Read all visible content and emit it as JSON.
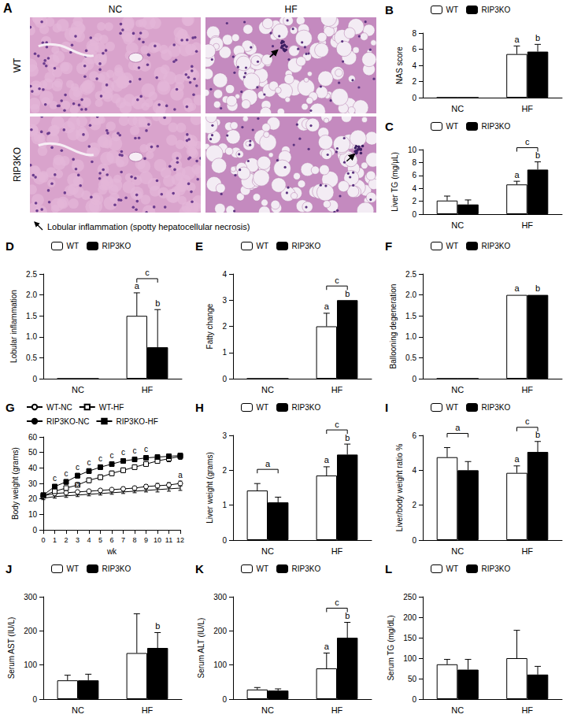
{
  "panel_a": {
    "panel": "A",
    "columns": [
      "NC",
      "HF"
    ],
    "rows": [
      "WT",
      "RIP3KO"
    ],
    "caption": "Lobular inflammation (spotty hepatocellular necrosis)"
  },
  "chart_data": [
    {
      "panel": "B",
      "type": "bar",
      "ylabel": "NAS score",
      "categories": [
        "NC",
        "HF"
      ],
      "ylim": [
        0,
        8
      ],
      "yticks": [
        0,
        2,
        4,
        6,
        8
      ],
      "legend": "upper left",
      "series": [
        {
          "name": "WT",
          "color": "#ffffff",
          "values": [
            0,
            5.4
          ],
          "errors": [
            null,
            1.0
          ],
          "letters": [
            null,
            "a"
          ]
        },
        {
          "name": "RIP3KO",
          "color": "#000000",
          "values": [
            0,
            5.7
          ],
          "errors": [
            null,
            0.9
          ],
          "letters": [
            null,
            "b"
          ]
        }
      ],
      "brackets": []
    },
    {
      "panel": "C",
      "type": "bar",
      "ylabel": "Liver TG (mg/μL)",
      "categories": [
        "NC",
        "HF"
      ],
      "ylim": [
        0,
        10
      ],
      "yticks": [
        0,
        2,
        4,
        6,
        8,
        10
      ],
      "legend": "upper left",
      "series": [
        {
          "name": "WT",
          "color": "#ffffff",
          "values": [
            2.1,
            4.6
          ],
          "errors": [
            0.7,
            0.5
          ],
          "letters": [
            null,
            "a"
          ]
        },
        {
          "name": "RIP3KO",
          "color": "#000000",
          "values": [
            1.5,
            6.9
          ],
          "errors": [
            0.7,
            1.2
          ],
          "letters": [
            null,
            "b"
          ]
        }
      ],
      "brackets": [
        {
          "category": "HF",
          "label": "c"
        }
      ]
    },
    {
      "panel": "D",
      "type": "bar",
      "ylabel": "Lobular inflammation",
      "categories": [
        "NC",
        "HF"
      ],
      "ylim": [
        0,
        2.5
      ],
      "yticks": [
        0,
        0.5,
        {
          "value": 1,
          "label": "1.0"
        },
        1.5,
        {
          "value": 2,
          "label": "2.0"
        },
        2.5
      ],
      "legend": "upper left",
      "series": [
        {
          "name": "WT",
          "color": "#ffffff",
          "values": [
            0,
            1.5
          ],
          "errors": [
            null,
            0.55
          ],
          "letters": [
            null,
            "a"
          ]
        },
        {
          "name": "RIP3KO",
          "color": "#000000",
          "values": [
            0,
            0.75
          ],
          "errors": [
            null,
            0.9
          ],
          "letters": [
            null,
            "b"
          ]
        }
      ],
      "brackets": [
        {
          "category": "HF",
          "label": "c"
        }
      ]
    },
    {
      "panel": "E",
      "type": "bar",
      "ylabel": "Fatty change",
      "categories": [
        "NC",
        "HF"
      ],
      "ylim": [
        0,
        4
      ],
      "yticks": [
        0,
        1,
        2,
        3,
        4
      ],
      "legend": "upper left",
      "series": [
        {
          "name": "WT",
          "color": "#ffffff",
          "values": [
            0,
            2
          ],
          "errors": [
            null,
            0.5
          ],
          "letters": [
            null,
            "a"
          ]
        },
        {
          "name": "RIP3KO",
          "color": "#000000",
          "values": [
            0,
            3
          ],
          "errors": [
            null,
            0
          ],
          "letters": [
            null,
            "b"
          ]
        }
      ],
      "brackets": [
        {
          "category": "HF",
          "label": "c"
        }
      ]
    },
    {
      "panel": "F",
      "type": "bar",
      "ylabel": "Ballooning degeneration",
      "categories": [
        "NC",
        "HF"
      ],
      "ylim": [
        0,
        2.5
      ],
      "yticks": [
        0,
        0.5,
        {
          "value": 1,
          "label": "1.0"
        },
        1.5,
        {
          "value": 2,
          "label": "2.0"
        },
        2.5
      ],
      "legend": "upper left",
      "series": [
        {
          "name": "WT",
          "color": "#ffffff",
          "values": [
            0,
            2
          ],
          "errors": [
            null,
            0
          ],
          "letters": [
            null,
            "a"
          ]
        },
        {
          "name": "RIP3KO",
          "color": "#000000",
          "values": [
            0,
            2
          ],
          "errors": [
            null,
            0
          ],
          "letters": [
            null,
            "b"
          ]
        }
      ],
      "brackets": []
    },
    {
      "panel": "G",
      "type": "line",
      "xlabel": "wk",
      "ylabel": "Body weight (grams)",
      "x": [
        0,
        1,
        2,
        3,
        4,
        5,
        6,
        7,
        8,
        9,
        10,
        11,
        12
      ],
      "xlim": [
        0,
        12
      ],
      "xticks": [
        0,
        1,
        2,
        3,
        4,
        5,
        6,
        7,
        8,
        9,
        10,
        11,
        12
      ],
      "ylim": [
        0,
        60
      ],
      "yticks": [
        0,
        10,
        20,
        30,
        40,
        50,
        60
      ],
      "legend": "upper left",
      "series": [
        {
          "name": "WT-NC",
          "color": "#000000",
          "marker": "open_circle",
          "values": [
            22,
            23.5,
            24,
            24.5,
            25,
            25.5,
            26,
            26.5,
            27,
            28,
            28.5,
            29,
            30
          ],
          "errors": [
            1,
            1,
            1,
            1,
            1,
            1,
            1,
            1.2,
            1.2,
            1.2,
            1.5,
            1.5,
            1.5
          ]
        },
        {
          "name": "WT-HF",
          "color": "#000000",
          "marker": "open_square",
          "values": [
            22,
            25,
            27,
            29,
            32,
            34,
            36.5,
            38.5,
            40.5,
            42.5,
            44.5,
            46,
            47.5
          ],
          "errors": [
            1,
            1,
            1.2,
            1.2,
            1.5,
            1.5,
            1.5,
            1.5,
            1.5,
            1.5,
            1.5,
            2,
            2
          ]
        },
        {
          "name": "RIP3KO-NC",
          "color": "#000000",
          "marker": "none",
          "values": [
            20.5,
            21.5,
            22,
            22.5,
            23,
            23.5,
            24,
            24.5,
            25,
            25.5,
            26,
            26.5,
            27
          ],
          "errors": [
            1,
            1,
            1,
            1,
            1,
            1,
            1,
            1,
            1,
            1,
            1.5,
            1.5,
            1.5
          ]
        },
        {
          "name": "RIP3KO-HF",
          "color": "#000000",
          "marker": "filled_square",
          "values": [
            22.5,
            28,
            31,
            35,
            38,
            40.5,
            42.5,
            44.5,
            45.5,
            46.5,
            47,
            47.5,
            48
          ],
          "errors": [
            1,
            1.2,
            1.5,
            1.5,
            1.5,
            1.5,
            1.5,
            1.5,
            1.5,
            1.5,
            1.5,
            1.5,
            1.5
          ]
        }
      ],
      "annotations": [
        {
          "x": 1,
          "label": "c",
          "group": "HF"
        },
        {
          "x": 2,
          "label": "c",
          "group": "HF"
        },
        {
          "x": 3,
          "label": "c",
          "group": "HF"
        },
        {
          "x": 4,
          "label": "c",
          "group": "HF"
        },
        {
          "x": 5,
          "label": "c",
          "group": "HF"
        },
        {
          "x": 6,
          "label": "c",
          "group": "HF"
        },
        {
          "x": 7,
          "label": "c",
          "group": "HF"
        },
        {
          "x": 8,
          "label": "c",
          "group": "HF"
        },
        {
          "x": 9,
          "label": "c",
          "group": "HF"
        },
        {
          "x": 3,
          "label": "a",
          "group": "NC"
        },
        {
          "x": 12,
          "label": "a",
          "group": "NC"
        }
      ]
    },
    {
      "panel": "H",
      "type": "bar",
      "ylabel": "Liver weight (grams)",
      "categories": [
        "NC",
        "HF"
      ],
      "ylim": [
        0,
        3
      ],
      "yticks": [
        0,
        1,
        2,
        3
      ],
      "legend": "upper left",
      "series": [
        {
          "name": "WT",
          "color": "#ffffff",
          "values": [
            1.42,
            1.85
          ],
          "errors": [
            0.2,
            0.25
          ],
          "letters": [
            null,
            "a"
          ]
        },
        {
          "name": "RIP3KO",
          "color": "#000000",
          "values": [
            1.08,
            2.45
          ],
          "errors": [
            0.15,
            0.3
          ],
          "letters": [
            null,
            "b"
          ]
        }
      ],
      "brackets": [
        {
          "category": "NC",
          "label": "a"
        },
        {
          "category": "HF",
          "label": "c"
        }
      ]
    },
    {
      "panel": "I",
      "type": "bar",
      "ylabel": "Liver/body weight ratio %",
      "categories": [
        "NC",
        "HF"
      ],
      "ylim": [
        0,
        6
      ],
      "yticks": [
        0,
        2,
        4,
        6
      ],
      "legend": "upper left",
      "series": [
        {
          "name": "WT",
          "color": "#ffffff",
          "values": [
            4.75,
            3.85
          ],
          "errors": [
            0.55,
            0.4
          ],
          "letters": [
            null,
            "a"
          ]
        },
        {
          "name": "RIP3KO",
          "color": "#000000",
          "values": [
            4.0,
            5.05
          ],
          "errors": [
            0.5,
            0.6
          ],
          "letters": [
            null,
            "b"
          ]
        }
      ],
      "brackets": [
        {
          "category": "NC",
          "label": "a"
        },
        {
          "category": "HF",
          "label": "c"
        }
      ]
    },
    {
      "panel": "J",
      "type": "bar",
      "ylabel": "Serum AST (IU/L)",
      "categories": [
        "NC",
        "HF"
      ],
      "ylim": [
        0,
        300
      ],
      "yticks": [
        0,
        100,
        200,
        300
      ],
      "legend": "upper left",
      "series": [
        {
          "name": "WT",
          "color": "#ffffff",
          "values": [
            55,
            135
          ],
          "errors": [
            15,
            115
          ],
          "letters": [
            null,
            null
          ]
        },
        {
          "name": "RIP3KO",
          "color": "#000000",
          "values": [
            55,
            150
          ],
          "errors": [
            18,
            45
          ],
          "letters": [
            null,
            "b"
          ]
        }
      ],
      "brackets": []
    },
    {
      "panel": "K",
      "type": "bar",
      "ylabel": "Serum ALT (IU/L)",
      "categories": [
        "NC",
        "HF"
      ],
      "ylim": [
        0,
        300
      ],
      "yticks": [
        0,
        100,
        200,
        300
      ],
      "legend": "upper left",
      "series": [
        {
          "name": "WT",
          "color": "#ffffff",
          "values": [
            28,
            90
          ],
          "errors": [
            6,
            45
          ],
          "letters": [
            null,
            "a"
          ]
        },
        {
          "name": "RIP3KO",
          "color": "#000000",
          "values": [
            25,
            180
          ],
          "errors": [
            5,
            45
          ],
          "letters": [
            null,
            "b"
          ]
        }
      ],
      "brackets": [
        {
          "category": "HF",
          "label": "c"
        }
      ]
    },
    {
      "panel": "L",
      "type": "bar",
      "ylabel": "Serum TG (mg/dL)",
      "categories": [
        "NC",
        "HF"
      ],
      "ylim": [
        0,
        250
      ],
      "yticks": [
        0,
        50,
        100,
        150,
        200,
        250
      ],
      "legend": "upper left",
      "series": [
        {
          "name": "WT",
          "color": "#ffffff",
          "values": [
            85,
            100
          ],
          "errors": [
            12,
            68
          ],
          "letters": [
            null,
            null
          ]
        },
        {
          "name": "RIP3KO",
          "color": "#000000",
          "values": [
            72,
            60
          ],
          "errors": [
            25,
            20
          ],
          "letters": [
            null,
            null
          ]
        }
      ],
      "brackets": []
    }
  ]
}
